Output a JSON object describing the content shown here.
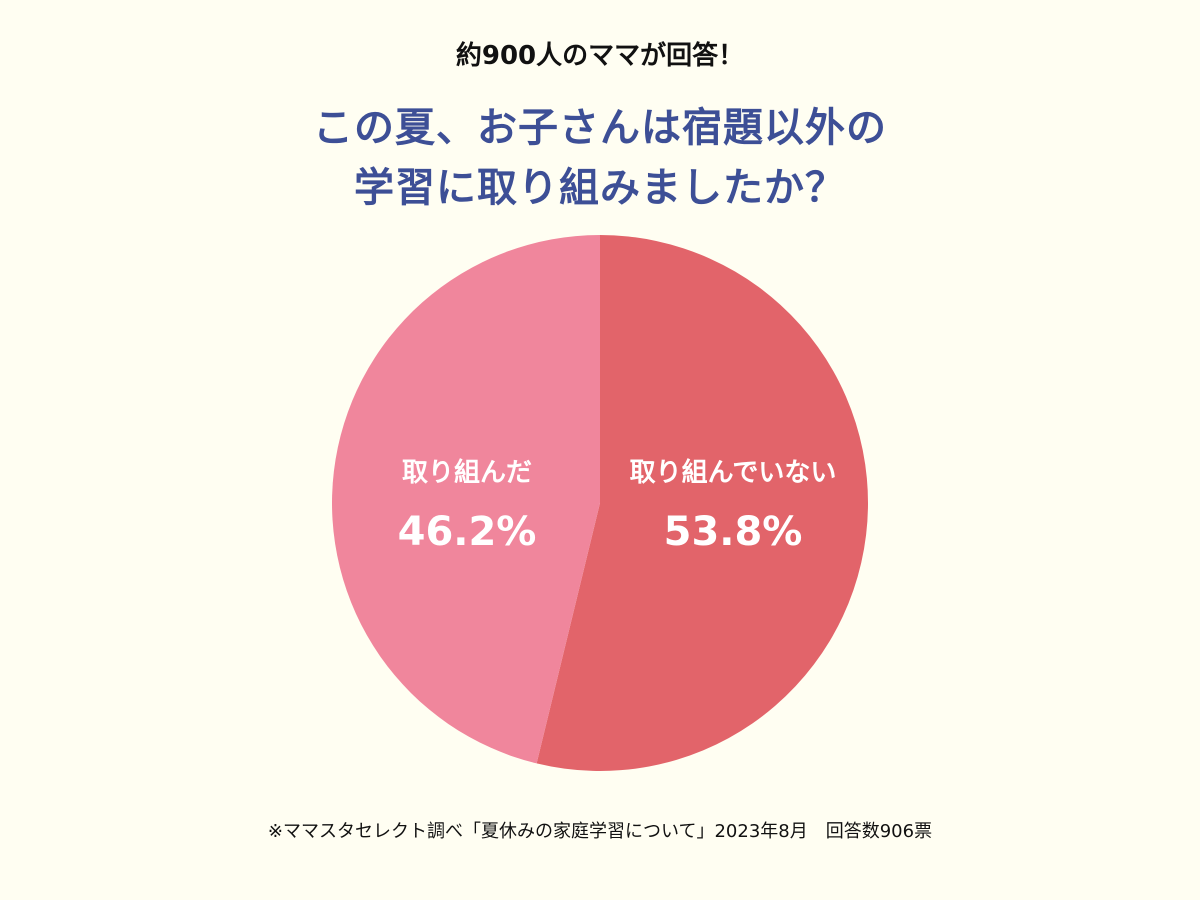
{
  "header": {
    "subtitle": "約900人のママが回答！",
    "title_line1": "この夏、お子さんは宿題以外の",
    "title_line2": "学習に取り組みましたか？"
  },
  "chart_data": {
    "type": "pie",
    "slices": [
      {
        "label": "取り組んでいない",
        "value": 53.8,
        "value_label": "53.8%",
        "color": "#e2646a"
      },
      {
        "label": "取り組んだ",
        "value": 46.2,
        "value_label": "46.2%",
        "color": "#f0869c"
      }
    ],
    "start": "12 o'clock",
    "direction": "clockwise"
  },
  "footer": {
    "note": "※ママスタセレクト調べ「夏休みの家庭学習について」2023年8月　回答数906票"
  },
  "colors": {
    "background": "#fffef2",
    "title": "#3d4f96",
    "label_text": "#ffffff"
  }
}
